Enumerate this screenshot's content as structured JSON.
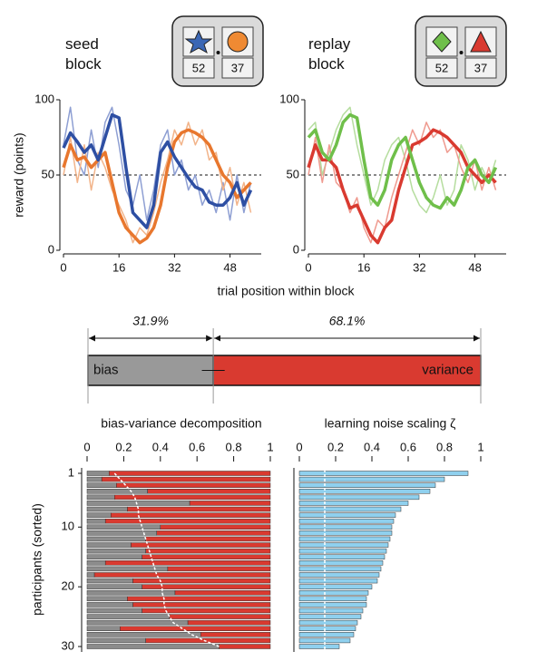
{
  "chart_data": [
    {
      "type": "line",
      "title": "seed block",
      "options": [
        52,
        37
      ],
      "ylabel": "reward (points)",
      "xlabel": "trial position within block",
      "x": [
        0,
        2,
        4,
        6,
        8,
        10,
        12,
        14,
        16,
        18,
        20,
        22,
        24,
        26,
        28,
        30,
        32,
        34,
        36,
        38,
        40,
        42,
        44,
        46,
        48,
        50,
        52,
        54
      ],
      "xlim": [
        0,
        57
      ],
      "xticks": [
        0,
        16,
        32,
        48
      ],
      "ylim": [
        0,
        100
      ],
      "yticks": [
        0,
        50,
        100
      ],
      "hline": 50,
      "series": [
        {
          "color": "#8e9fd3",
          "linewidth": 1.5,
          "values": [
            70,
            95,
            60,
            50,
            80,
            55,
            85,
            95,
            70,
            40,
            30,
            50,
            20,
            40,
            70,
            80,
            50,
            60,
            40,
            50,
            30,
            40,
            25,
            45,
            20,
            50,
            25,
            45
          ]
        },
        {
          "color": "#f2b48a",
          "linewidth": 1.5,
          "values": [
            50,
            75,
            45,
            70,
            40,
            65,
            55,
            40,
            30,
            20,
            5,
            15,
            10,
            25,
            45,
            60,
            80,
            70,
            85,
            70,
            80,
            60,
            65,
            40,
            55,
            30,
            45,
            25
          ]
        },
        {
          "color": "#e8772e",
          "linewidth": 3.5,
          "values": [
            55,
            70,
            60,
            62,
            55,
            60,
            65,
            45,
            25,
            15,
            10,
            5,
            8,
            15,
            30,
            55,
            72,
            78,
            80,
            78,
            75,
            70,
            60,
            50,
            45,
            35,
            40,
            45
          ]
        },
        {
          "color": "#2e4fa3",
          "linewidth": 3.5,
          "values": [
            68,
            78,
            72,
            65,
            70,
            60,
            75,
            90,
            88,
            55,
            25,
            20,
            15,
            30,
            65,
            72,
            62,
            55,
            48,
            42,
            40,
            32,
            30,
            30,
            35,
            45,
            30,
            40
          ]
        }
      ]
    },
    {
      "type": "line",
      "title": "replay block",
      "options": [
        52,
        37
      ],
      "x": [
        0,
        2,
        4,
        6,
        8,
        10,
        12,
        14,
        16,
        18,
        20,
        22,
        24,
        26,
        28,
        30,
        32,
        34,
        36,
        38,
        40,
        42,
        44,
        46,
        48,
        50,
        52,
        54
      ],
      "xlim": [
        0,
        57
      ],
      "xticks": [
        0,
        16,
        32,
        48
      ],
      "ylim": [
        0,
        100
      ],
      "yticks": [
        0,
        50,
        100
      ],
      "hline": 50,
      "series": [
        {
          "color": "#b5dd9e",
          "linewidth": 1.5,
          "values": [
            80,
            85,
            50,
            65,
            80,
            90,
            95,
            70,
            50,
            30,
            40,
            60,
            70,
            75,
            60,
            40,
            30,
            25,
            35,
            50,
            30,
            40,
            70,
            60,
            40,
            55,
            45,
            60
          ]
        },
        {
          "color": "#ef9a8f",
          "linewidth": 1.5,
          "values": [
            50,
            75,
            45,
            70,
            45,
            40,
            25,
            35,
            15,
            5,
            20,
            15,
            35,
            50,
            65,
            80,
            70,
            85,
            75,
            80,
            65,
            70,
            55,
            45,
            60,
            40,
            55,
            40
          ]
        },
        {
          "color": "#d93a30",
          "linewidth": 3.5,
          "values": [
            55,
            70,
            60,
            60,
            55,
            40,
            28,
            30,
            20,
            10,
            5,
            15,
            20,
            40,
            55,
            70,
            72,
            75,
            80,
            78,
            75,
            70,
            65,
            55,
            50,
            45,
            50,
            45
          ]
        },
        {
          "color": "#6fbf4a",
          "linewidth": 3.5,
          "values": [
            75,
            80,
            65,
            60,
            70,
            85,
            90,
            88,
            60,
            35,
            30,
            40,
            60,
            70,
            75,
            60,
            45,
            35,
            30,
            28,
            35,
            30,
            40,
            55,
            60,
            50,
            45,
            55
          ]
        }
      ]
    },
    {
      "type": "split",
      "xlim": [
        0,
        100
      ],
      "series": [
        {
          "name": "bias",
          "color": "#999999",
          "values": [
            31.9
          ],
          "value_labels": [
            "31.9%"
          ],
          "errors": [
            2.9
          ]
        },
        {
          "name": "variance",
          "color": "#d93a30",
          "values": [
            68.1
          ],
          "value_labels": [
            "68.1%"
          ]
        }
      ]
    },
    {
      "type": "stacked_barh",
      "title": "bias-variance decomposition",
      "ylabel": "participants (sorted)",
      "xlim": [
        0,
        1
      ],
      "xticks": [
        0,
        0.2,
        0.4,
        0.6,
        0.8,
        1
      ],
      "ylim": [
        1,
        30
      ],
      "yticks": [
        1,
        10,
        20,
        30
      ],
      "series": [
        {
          "color": "#8c8c8c",
          "values": [
            0.12,
            0.08,
            0.16,
            0.33,
            0.15,
            0.56,
            0.22,
            0.13,
            0.1,
            0.4,
            0.38,
            0.32,
            0.24,
            0.32,
            0.3,
            0.1,
            0.44,
            0.04,
            0.25,
            0.3,
            0.48,
            0.22,
            0.25,
            0.3,
            0.45,
            0.55,
            0.18,
            0.62,
            0.32,
            0.72
          ]
        },
        {
          "color": "#d93a30",
          "values": [
            0.88,
            0.92,
            0.84,
            0.67,
            0.85,
            0.44,
            0.78,
            0.87,
            0.9,
            0.6,
            0.62,
            0.68,
            0.76,
            0.68,
            0.7,
            0.9,
            0.56,
            0.96,
            0.75,
            0.7,
            0.52,
            0.78,
            0.75,
            0.7,
            0.55,
            0.45,
            0.82,
            0.38,
            0.68,
            0.28
          ]
        }
      ],
      "line": {
        "color": "#ffffff",
        "dashed": true,
        "values": [
          0.15,
          0.18,
          0.21,
          0.24,
          0.26,
          0.27,
          0.28,
          0.28,
          0.29,
          0.3,
          0.31,
          0.32,
          0.33,
          0.34,
          0.35,
          0.36,
          0.37,
          0.38,
          0.4,
          0.41,
          0.41,
          0.42,
          0.42,
          0.43,
          0.45,
          0.47,
          0.52,
          0.57,
          0.64,
          0.72
        ]
      }
    },
    {
      "type": "barh",
      "title": "learning noise scaling ζ",
      "color": "#8fd0ee",
      "xlim": [
        0,
        1
      ],
      "xticks": [
        0,
        0.2,
        0.4,
        0.6,
        0.8,
        1
      ],
      "ylim": [
        1,
        30
      ],
      "values": [
        0.93,
        0.8,
        0.75,
        0.72,
        0.66,
        0.6,
        0.56,
        0.53,
        0.52,
        0.51,
        0.51,
        0.5,
        0.49,
        0.48,
        0.47,
        0.46,
        0.45,
        0.44,
        0.43,
        0.4,
        0.38,
        0.37,
        0.37,
        0.35,
        0.34,
        0.32,
        0.31,
        0.3,
        0.28,
        0.22
      ],
      "vline": {
        "value": 0.14,
        "color": "#ffffff",
        "dashed": true
      }
    }
  ]
}
